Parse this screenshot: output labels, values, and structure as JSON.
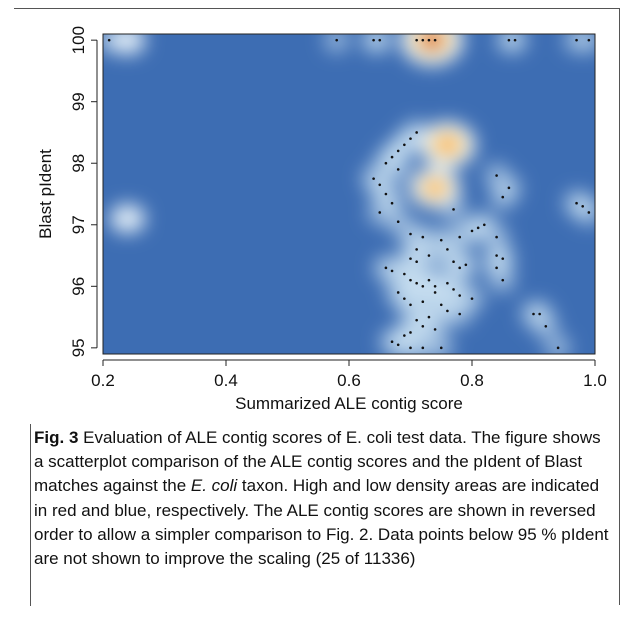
{
  "chart_data": {
    "type": "heatmap",
    "subtype": "scatter-density",
    "xlabel": "Summarized ALE contig score",
    "ylabel": "Blast pIdent",
    "xlim": [
      0.2,
      1.0
    ],
    "ylim": [
      94.9,
      100.1
    ],
    "x_ticks": [
      "0.2",
      "0.4",
      "0.6",
      "0.8",
      "1.0"
    ],
    "x_tick_values": [
      0.2,
      0.4,
      0.6,
      0.8,
      1.0
    ],
    "y_ticks": [
      "95",
      "96",
      "97",
      "98",
      "99",
      "100"
    ],
    "y_tick_values": [
      95,
      96,
      97,
      98,
      99,
      100
    ],
    "colors": {
      "low_density": "#3d6db3",
      "mid_density": "#ffffff",
      "high_density": "#cc1100"
    },
    "density_hotspots": [
      {
        "x": 0.735,
        "y": 100.0,
        "intensity": 1.0
      },
      {
        "x": 0.76,
        "y": 98.3,
        "intensity": 0.85
      },
      {
        "x": 0.74,
        "y": 97.6,
        "intensity": 0.7
      },
      {
        "x": 0.24,
        "y": 97.1,
        "intensity": 0.3
      },
      {
        "x": 0.24,
        "y": 100.0,
        "intensity": 0.3
      }
    ],
    "points": [
      {
        "x": 0.21,
        "y": 100.0
      },
      {
        "x": 0.58,
        "y": 100.0
      },
      {
        "x": 0.64,
        "y": 100.0
      },
      {
        "x": 0.65,
        "y": 100.0
      },
      {
        "x": 0.71,
        "y": 100.0
      },
      {
        "x": 0.72,
        "y": 100.0
      },
      {
        "x": 0.73,
        "y": 100.0
      },
      {
        "x": 0.74,
        "y": 100.0
      },
      {
        "x": 0.86,
        "y": 100.0
      },
      {
        "x": 0.87,
        "y": 100.0
      },
      {
        "x": 0.97,
        "y": 100.0
      },
      {
        "x": 0.99,
        "y": 100.0
      },
      {
        "x": 0.71,
        "y": 98.5
      },
      {
        "x": 0.7,
        "y": 98.4
      },
      {
        "x": 0.69,
        "y": 98.3
      },
      {
        "x": 0.68,
        "y": 98.2
      },
      {
        "x": 0.67,
        "y": 98.1
      },
      {
        "x": 0.66,
        "y": 98.0
      },
      {
        "x": 0.68,
        "y": 97.9
      },
      {
        "x": 0.64,
        "y": 97.75
      },
      {
        "x": 0.65,
        "y": 97.65
      },
      {
        "x": 0.66,
        "y": 97.5
      },
      {
        "x": 0.67,
        "y": 97.35
      },
      {
        "x": 0.65,
        "y": 97.2
      },
      {
        "x": 0.68,
        "y": 97.05
      },
      {
        "x": 0.77,
        "y": 97.25
      },
      {
        "x": 0.84,
        "y": 97.8
      },
      {
        "x": 0.86,
        "y": 97.6
      },
      {
        "x": 0.85,
        "y": 97.45
      },
      {
        "x": 0.97,
        "y": 97.35
      },
      {
        "x": 0.98,
        "y": 97.3
      },
      {
        "x": 0.99,
        "y": 97.2
      },
      {
        "x": 0.82,
        "y": 97.0
      },
      {
        "x": 0.81,
        "y": 96.95
      },
      {
        "x": 0.8,
        "y": 96.9
      },
      {
        "x": 0.7,
        "y": 96.85
      },
      {
        "x": 0.72,
        "y": 96.8
      },
      {
        "x": 0.75,
        "y": 96.75
      },
      {
        "x": 0.78,
        "y": 96.8
      },
      {
        "x": 0.84,
        "y": 96.8
      },
      {
        "x": 0.76,
        "y": 96.6
      },
      {
        "x": 0.71,
        "y": 96.6
      },
      {
        "x": 0.73,
        "y": 96.5
      },
      {
        "x": 0.7,
        "y": 96.45
      },
      {
        "x": 0.71,
        "y": 96.4
      },
      {
        "x": 0.77,
        "y": 96.4
      },
      {
        "x": 0.78,
        "y": 96.3
      },
      {
        "x": 0.79,
        "y": 96.35
      },
      {
        "x": 0.84,
        "y": 96.5
      },
      {
        "x": 0.85,
        "y": 96.45
      },
      {
        "x": 0.84,
        "y": 96.3
      },
      {
        "x": 0.85,
        "y": 96.1
      },
      {
        "x": 0.66,
        "y": 96.3
      },
      {
        "x": 0.67,
        "y": 96.25
      },
      {
        "x": 0.69,
        "y": 96.2
      },
      {
        "x": 0.7,
        "y": 96.1
      },
      {
        "x": 0.71,
        "y": 96.05
      },
      {
        "x": 0.72,
        "y": 96.0
      },
      {
        "x": 0.74,
        "y": 96.0
      },
      {
        "x": 0.73,
        "y": 96.1
      },
      {
        "x": 0.74,
        "y": 95.9
      },
      {
        "x": 0.76,
        "y": 96.05
      },
      {
        "x": 0.77,
        "y": 95.95
      },
      {
        "x": 0.78,
        "y": 95.85
      },
      {
        "x": 0.8,
        "y": 95.8
      },
      {
        "x": 0.68,
        "y": 95.9
      },
      {
        "x": 0.69,
        "y": 95.8
      },
      {
        "x": 0.7,
        "y": 95.7
      },
      {
        "x": 0.72,
        "y": 95.75
      },
      {
        "x": 0.75,
        "y": 95.7
      },
      {
        "x": 0.76,
        "y": 95.6
      },
      {
        "x": 0.78,
        "y": 95.55
      },
      {
        "x": 0.73,
        "y": 95.5
      },
      {
        "x": 0.71,
        "y": 95.45
      },
      {
        "x": 0.9,
        "y": 95.55
      },
      {
        "x": 0.91,
        "y": 95.55
      },
      {
        "x": 0.92,
        "y": 95.35
      },
      {
        "x": 0.72,
        "y": 95.35
      },
      {
        "x": 0.74,
        "y": 95.3
      },
      {
        "x": 0.7,
        "y": 95.25
      },
      {
        "x": 0.69,
        "y": 95.2
      },
      {
        "x": 0.67,
        "y": 95.1
      },
      {
        "x": 0.68,
        "y": 95.05
      },
      {
        "x": 0.7,
        "y": 95.0
      },
      {
        "x": 0.72,
        "y": 95.0
      },
      {
        "x": 0.75,
        "y": 95.0
      },
      {
        "x": 0.94,
        "y": 95.0
      }
    ]
  },
  "caption": {
    "fig_label": "Fig. 3",
    "text_before_italic_1": " Evaluation of ALE contig scores of E. coli test data. The figure shows a scatterplot comparison of the ALE contig scores and the pIdent of Blast matches against the ",
    "italic_1": "E. coli",
    "text_after_italic_1": " taxon. High and low density areas are indicated in red and blue, respectively. The ALE contig scores are shown in reversed order to allow a simpler comparison to Fig. 2. Data points below 95 % pIdent are not shown to improve the scaling (25 of 11336)"
  }
}
